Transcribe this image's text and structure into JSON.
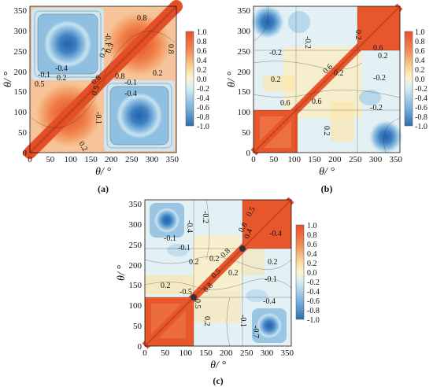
{
  "chart_data": [
    {
      "type": "heatmap",
      "panel_label": "(a)",
      "xlabel": "θ/ °",
      "ylabel": "θ/ °",
      "xlim": [
        0,
        360
      ],
      "ylim": [
        0,
        360
      ],
      "x_ticks": [
        "0",
        "50",
        "100",
        "150",
        "200",
        "250",
        "300",
        "350"
      ],
      "y_ticks": [
        "0",
        "50",
        "100",
        "150",
        "200",
        "250",
        "300",
        "350"
      ],
      "colorbar": {
        "range": [
          -1.0,
          1.0
        ],
        "ticks": [
          "1.0",
          "0.8",
          "0.6",
          "0.4",
          "0.2",
          "0.0",
          "-0.2",
          "-0.4",
          "-0.6",
          "-0.8",
          "-1.0"
        ]
      },
      "description": "Correlation map: strong positive (red) along the diagonal and in the 0-180/0-180 and 180-360/180-360 blocks; strong negative (blue) blocks centred near (60,300) and (290,70).",
      "annotations": [
        "0.8",
        "-0.1",
        "0.2",
        "0.5",
        "-0.4",
        "-0.1",
        "0.2",
        "0.5",
        "0.8",
        "-0.1",
        "-0.4",
        "0.8",
        "0.5",
        "-0.1",
        "0.2",
        "0.8",
        "0.2"
      ]
    },
    {
      "type": "heatmap",
      "panel_label": "(b)",
      "xlabel": "θ/ °",
      "ylabel": "θ/ °",
      "xlim": [
        0,
        360
      ],
      "ylim": [
        0,
        360
      ],
      "x_ticks": [
        "0",
        "50",
        "100",
        "150",
        "200",
        "250",
        "300",
        "350"
      ],
      "y_ticks": [
        "0",
        "50",
        "100",
        "150",
        "200",
        "250",
        "300",
        "350"
      ],
      "colorbar": {
        "range": [
          -1.0,
          1.0
        ],
        "ticks": [
          "1.0",
          "0.8",
          "0.6",
          "0.4",
          "0.2",
          "0.0",
          "-0.2",
          "-0.4",
          "-0.6",
          "-0.8",
          "-1.0"
        ]
      },
      "description": "Correlation map: narrow positive diagonal ridge with red blocks at 0-100 and 260-360; negative blue lobes near (30,320) and (330,30); weak structure elsewhere.",
      "annotations": [
        "-0.2",
        "0.2",
        "0.6",
        "-0.2",
        "0.2",
        "0.2",
        "0.6",
        "-0.2",
        "0.2",
        "0.6",
        "0.6",
        "-0.2",
        "0.2"
      ]
    },
    {
      "type": "heatmap",
      "panel_label": "(c)",
      "xlabel": "θ/ °",
      "ylabel": "θ/ °",
      "xlim": [
        0,
        360
      ],
      "ylim": [
        0,
        360
      ],
      "x_ticks": [
        "0",
        "50",
        "100",
        "150",
        "200",
        "250",
        "300",
        "350"
      ],
      "y_ticks": [
        "0",
        "50",
        "100",
        "150",
        "200",
        "250",
        "300",
        "350"
      ],
      "colorbar": {
        "range": [
          -1.0,
          1.0
        ],
        "ticks": [
          "1.0",
          "0.8",
          "0.6",
          "0.4",
          "0.2",
          "0.0",
          "-0.2",
          "-0.4",
          "-0.6",
          "-0.8",
          "-1.0"
        ]
      },
      "description": "Correlation map: positive diagonal with red blocks at 0-120 and 240-360, singular points near (120,120) and (240,240); negative blue lobes near (50,320) and (320,50).",
      "annotations": [
        "-0.2",
        "-0.4",
        "0.5",
        "0.8",
        "-0.1",
        "0.4",
        "-0.1",
        "-0.4",
        "0.2",
        "0.8",
        "0.5",
        "0.2",
        "0.2",
        "0.2",
        "-0.1",
        "0.2",
        "-0.5",
        "0.8",
        "0.5",
        "-0.4",
        "0.2",
        "-0.1",
        "-0.7"
      ]
    }
  ]
}
